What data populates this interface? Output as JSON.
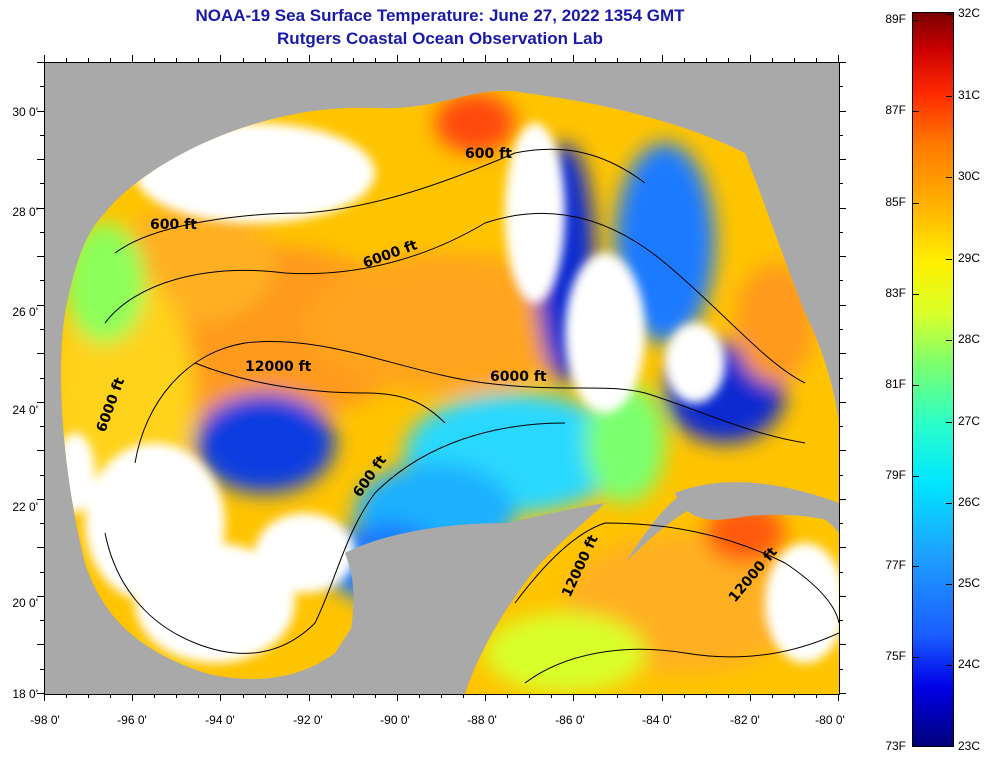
{
  "title": {
    "line1": "NOAA-19 Sea Surface Temperature:  June 27, 2022 1354 GMT",
    "line2": "Rutgers Coastal Ocean Observation Lab"
  },
  "axes": {
    "latitude_labels": [
      "30 0'",
      "28 0'",
      "26 0'",
      "24 0'",
      "22 0'",
      "20 0'",
      "18 0'"
    ],
    "longitude_labels": [
      "-98 0'",
      "-96 0'",
      "-94 0'",
      "-92 0'",
      "-90 0'",
      "-88 0'",
      "-86 0'",
      "-84 0'",
      "-82 0'",
      "-80 0'"
    ]
  },
  "contour_labels": {
    "c1": "600 ft",
    "c2": "600 ft",
    "c3": "6000 ft",
    "c4": "12000 ft",
    "c5": "6000 ft",
    "c6": "6000 ft",
    "c7": "600 ft",
    "c8": "12000 ft",
    "c9": "12000 ft"
  },
  "colorbar": {
    "fahrenheit": [
      "89F",
      "87F",
      "85F",
      "83F",
      "81F",
      "79F",
      "77F",
      "75F",
      "73F"
    ],
    "celsius": [
      "32C",
      "31C",
      "30C",
      "29C",
      "28C",
      "27C",
      "26C",
      "25C",
      "24C",
      "23C"
    ]
  },
  "colors": {
    "land": "#a9a9a9",
    "cloud": "#ffffff",
    "title": "#1a1aa8",
    "warm": "#ff9a1a",
    "mid": "#ffe01a",
    "cool": "#2ad8ff",
    "cold": "#0a1ed0"
  }
}
